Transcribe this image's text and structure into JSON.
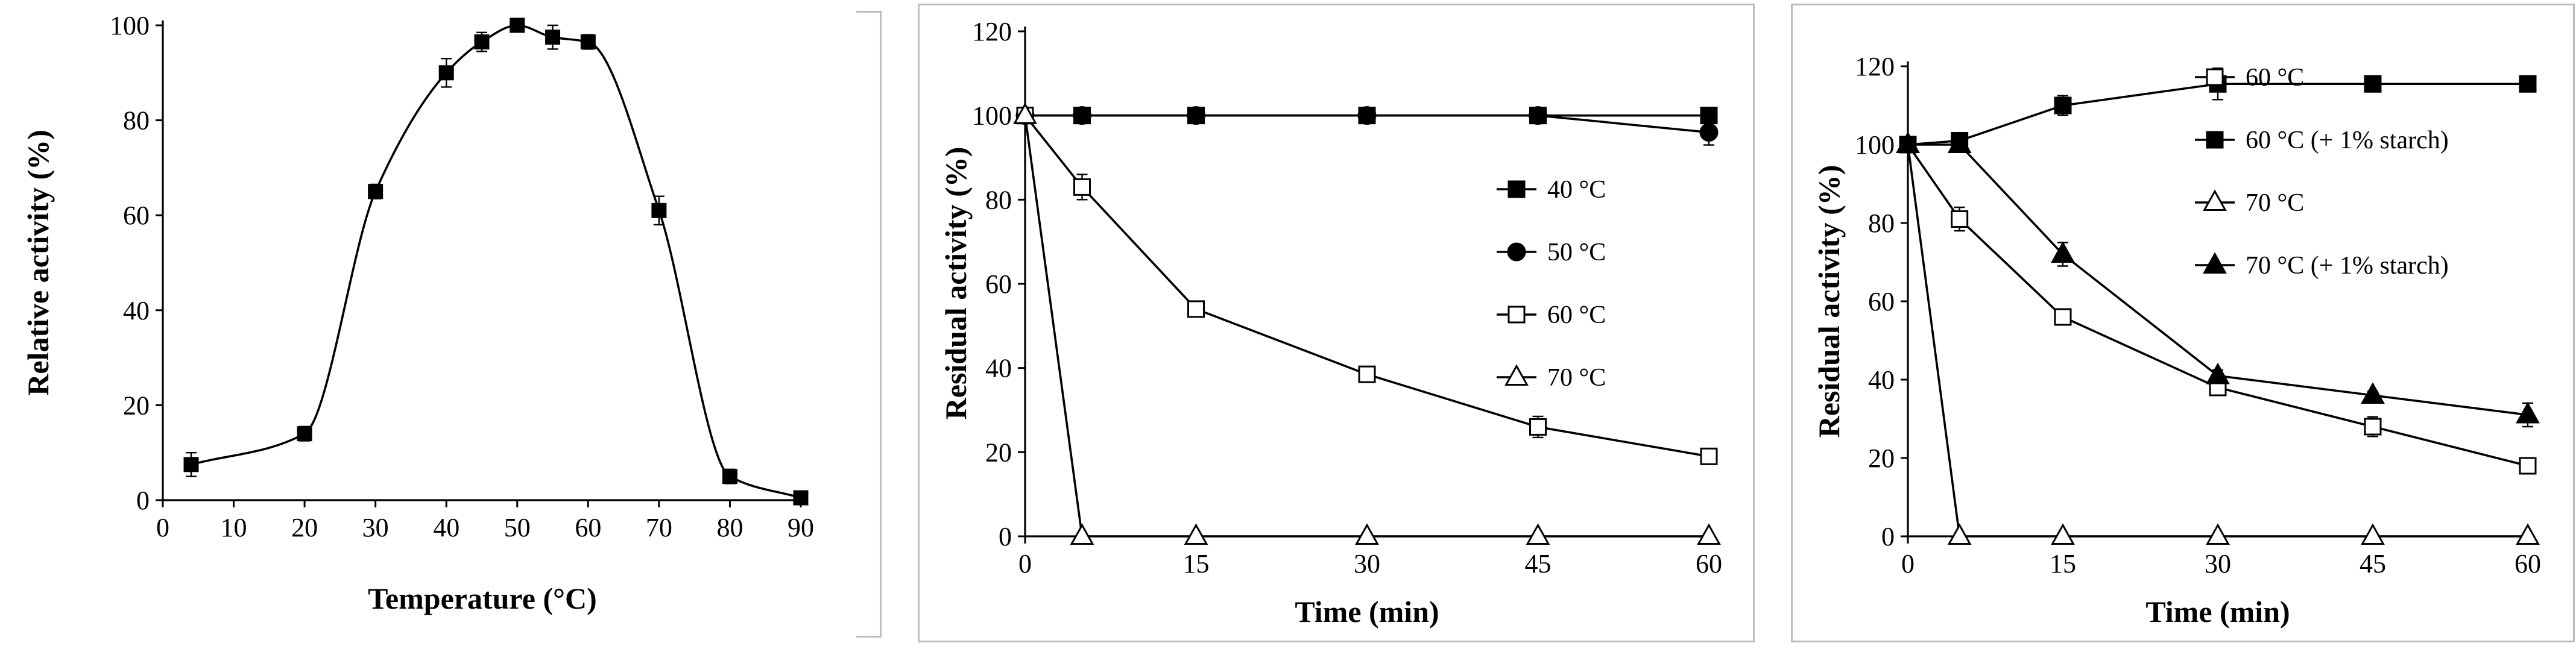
{
  "chart_data": [
    {
      "type": "line",
      "xlabel": "Temperature (°C)",
      "ylabel": "Relative activity (%)",
      "xlim": [
        0,
        90
      ],
      "ylim": [
        0,
        100
      ],
      "xticks": [
        0,
        10,
        20,
        30,
        40,
        50,
        60,
        70,
        80,
        90
      ],
      "yticks": [
        0,
        20,
        40,
        60,
        80,
        100
      ],
      "smooth": true,
      "legend": "none",
      "frame": "right",
      "series": [
        {
          "name": "Relative activity",
          "marker": "filled-square",
          "x": [
            4,
            20,
            30,
            40,
            45,
            50,
            55,
            60,
            70,
            80,
            90
          ],
          "y": [
            7.5,
            14,
            65,
            90,
            96.5,
            100,
            97.5,
            96.5,
            61,
            5,
            0.5
          ],
          "err": [
            2.5,
            1.5,
            1.5,
            3,
            2,
            0.5,
            2.5,
            1.5,
            3,
            1.5,
            0.5
          ]
        }
      ]
    },
    {
      "type": "line",
      "xlabel": "Time (min)",
      "ylabel": "Residual activity (%)",
      "xlim": [
        0,
        60
      ],
      "ylim": [
        0,
        120
      ],
      "xticks": [
        0,
        15,
        30,
        45,
        60
      ],
      "yticks": [
        0,
        20,
        40,
        60,
        80,
        100,
        120
      ],
      "smooth": false,
      "legend": "center-right",
      "frame": "box",
      "series": [
        {
          "name": "40 °C",
          "marker": "filled-square",
          "x": [
            0,
            5,
            15,
            30,
            45,
            60
          ],
          "y": [
            100,
            100,
            100,
            100,
            100,
            100
          ],
          "err": [
            0,
            0,
            0,
            0,
            0,
            0
          ]
        },
        {
          "name": "50 °C",
          "marker": "filled-circle",
          "x": [
            0,
            5,
            15,
            30,
            45,
            60
          ],
          "y": [
            100,
            100,
            100,
            100,
            100,
            96
          ],
          "err": [
            0,
            0,
            0,
            0,
            0,
            3
          ]
        },
        {
          "name": "60 °C",
          "marker": "open-square",
          "x": [
            0,
            5,
            15,
            30,
            45,
            60
          ],
          "y": [
            100,
            83,
            54,
            38.5,
            26,
            19
          ],
          "err": [
            0,
            3,
            1.5,
            1.5,
            2.5,
            1
          ]
        },
        {
          "name": "70 °C",
          "marker": "open-triangle",
          "x": [
            0,
            5,
            15,
            30,
            45,
            60
          ],
          "y": [
            100,
            0,
            0,
            0,
            0,
            0
          ],
          "err": [
            0,
            0,
            0,
            0,
            0,
            0
          ]
        }
      ]
    },
    {
      "type": "line",
      "xlabel": "Time (min)",
      "ylabel": "Residual activity (%)",
      "xlim": [
        0,
        60
      ],
      "ylim": [
        0,
        120
      ],
      "xticks": [
        0,
        15,
        30,
        45,
        60
      ],
      "yticks": [
        0,
        20,
        40,
        60,
        80,
        100,
        120
      ],
      "smooth": false,
      "legend": "top-right",
      "frame": "box",
      "series": [
        {
          "name": "60 °C",
          "marker": "open-square",
          "x": [
            0,
            5,
            15,
            30,
            45,
            60
          ],
          "y": [
            100,
            81,
            56,
            38,
            28,
            18
          ],
          "err": [
            0,
            3,
            1.5,
            1.5,
            2.5,
            1.5
          ]
        },
        {
          "name": "60 °C  (+ 1% starch)",
          "marker": "filled-square",
          "x": [
            0,
            5,
            15,
            30,
            45,
            60
          ],
          "y": [
            100,
            101,
            110,
            115.5,
            115.5,
            115.5
          ],
          "err": [
            0,
            1.5,
            2.5,
            4,
            2,
            0.5
          ]
        },
        {
          "name": "70 °C",
          "marker": "open-triangle",
          "x": [
            0,
            5,
            15,
            30,
            45,
            60
          ],
          "y": [
            100,
            0,
            0,
            0,
            0,
            0
          ],
          "err": [
            0,
            0,
            0,
            0,
            0,
            0
          ]
        },
        {
          "name": "70 °C (+ 1% starch)",
          "marker": "filled-triangle",
          "x": [
            0,
            5,
            15,
            30,
            45,
            60
          ],
          "y": [
            100,
            100,
            72,
            41,
            36,
            31
          ],
          "err": [
            0,
            0,
            3,
            1.5,
            1,
            3
          ]
        }
      ]
    }
  ]
}
